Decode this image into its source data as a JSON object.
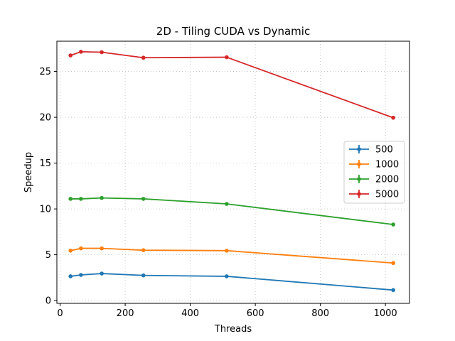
{
  "chart_data": {
    "type": "line",
    "title": "2D - Tiling CUDA vs Dynamic",
    "xlabel": "Threads",
    "ylabel": "Speedup",
    "xlim": [
      -10,
      1074
    ],
    "ylim": [
      -0.3,
      28.3
    ],
    "xticks": [
      0,
      200,
      400,
      600,
      800,
      1000
    ],
    "yticks": [
      0,
      5,
      10,
      15,
      20,
      25
    ],
    "grid": true,
    "legend_position": "center-right",
    "x": [
      32,
      64,
      128,
      256,
      512,
      1024
    ],
    "series": [
      {
        "name": "500",
        "color": "#1f77b4",
        "values": [
          2.65,
          2.8,
          2.95,
          2.75,
          2.65,
          1.15
        ]
      },
      {
        "name": "1000",
        "color": "#ff7f0e",
        "values": [
          5.45,
          5.7,
          5.7,
          5.5,
          5.45,
          4.1
        ]
      },
      {
        "name": "2000",
        "color": "#2ca02c",
        "values": [
          11.1,
          11.1,
          11.2,
          11.1,
          10.55,
          8.3
        ]
      },
      {
        "name": "5000",
        "color": "#d62728",
        "values": [
          26.75,
          27.15,
          27.1,
          26.5,
          26.55,
          19.95
        ]
      }
    ]
  }
}
